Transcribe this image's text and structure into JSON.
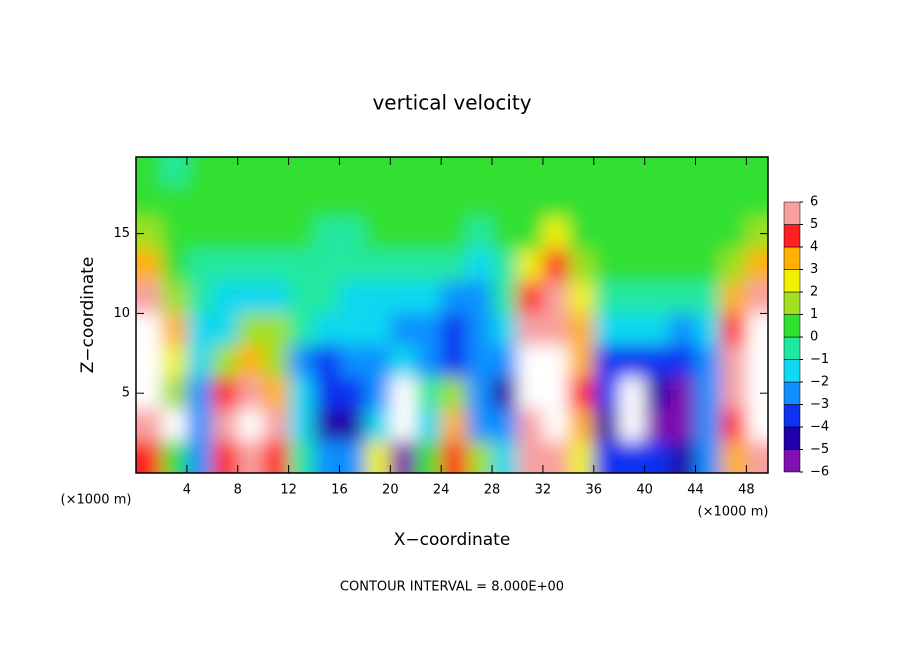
{
  "chart_data": {
    "type": "heatmap",
    "title": "vertical velocity",
    "x_label": "X−coordinate",
    "y_label": "Z−coordinate",
    "x_unit_left": "(×1000 m)",
    "x_unit_right": "(×1000 m)",
    "footer": "CONTOUR INTERVAL = 8.000E+00",
    "xlim": [
      0,
      49.7
    ],
    "ylim": [
      0,
      19.8
    ],
    "xticks": [
      4,
      8,
      12,
      16,
      20,
      24,
      28,
      32,
      36,
      40,
      44,
      48
    ],
    "yticks": [
      5,
      10,
      15
    ],
    "x": [
      1,
      3,
      5,
      7,
      9,
      11,
      13,
      15,
      17,
      19,
      21,
      23,
      25,
      27,
      29,
      31,
      33,
      35,
      37,
      39,
      41,
      43,
      45,
      47,
      49
    ],
    "y": [
      19,
      17,
      15,
      13,
      11,
      9,
      7,
      5,
      3,
      1
    ],
    "values": [
      [
        0,
        -0.5,
        0,
        0.5,
        0.5,
        0.5,
        0.5,
        0.5,
        0.3,
        0.5,
        0.5,
        0.5,
        0.3,
        0.3,
        0.3,
        0.5,
        0.5,
        0.5,
        0.5,
        0.3,
        0.3,
        0.5,
        0.5,
        0.5,
        0.5
      ],
      [
        0.5,
        0,
        0,
        0.5,
        0.5,
        0.5,
        0.3,
        0.3,
        0,
        0,
        0.3,
        0.3,
        0,
        0,
        0.3,
        0.5,
        0.5,
        0.5,
        0.3,
        0.3,
        0.3,
        0.5,
        0.3,
        0.3,
        0.5
      ],
      [
        1,
        0.5,
        0,
        0.3,
        0.3,
        0.3,
        0,
        -0.3,
        -0.5,
        0,
        0,
        0,
        0,
        -0.3,
        0,
        0.3,
        2,
        0.5,
        0.3,
        0.5,
        0.5,
        0.3,
        0,
        0.5,
        1
      ],
      [
        3,
        0.5,
        -0.5,
        -0.5,
        -0.5,
        -0.5,
        -0.5,
        -0.5,
        -0.5,
        -0.5,
        -1,
        -1,
        -1,
        -1.2,
        -0.5,
        2,
        4,
        1.5,
        0,
        0,
        0,
        0,
        0,
        1.5,
        3
      ],
      [
        5,
        1,
        -1,
        -1.5,
        -1.5,
        -1.5,
        -1,
        -1,
        -1.5,
        -1.5,
        -1.5,
        -2,
        -2.5,
        -2.5,
        -1,
        4,
        5,
        2,
        -1,
        -1,
        -1,
        -0.5,
        -0.5,
        3,
        5
      ],
      [
        8,
        3,
        -1.5,
        -2,
        1,
        1,
        -1,
        -2,
        -2,
        -2,
        -2.5,
        -2.5,
        -3.5,
        -3,
        -2,
        5,
        6,
        3,
        -2,
        -2,
        -2,
        -2.5,
        -2,
        4,
        8
      ],
      [
        8,
        2,
        -2,
        1.5,
        3,
        1.5,
        -3,
        -3.5,
        -3,
        -3,
        -2,
        -3,
        -4,
        -3,
        -3,
        7,
        8,
        3,
        -4,
        -4,
        -4,
        -4,
        -3,
        5,
        8
      ],
      [
        7,
        1,
        -3,
        4,
        6,
        3,
        -2,
        -4,
        -3.5,
        -2.5,
        -7,
        -1,
        1,
        -3,
        -5,
        8,
        8,
        4,
        -4,
        -8,
        -5,
        -6,
        -3,
        5,
        8
      ],
      [
        5,
        -7,
        -3,
        5,
        9,
        5,
        -2,
        -5,
        -5,
        -2,
        -8,
        -2,
        3,
        -3,
        -3,
        6,
        9,
        3,
        -5,
        -7,
        -6,
        -6,
        -3,
        4,
        9
      ],
      [
        4,
        0,
        -3,
        4,
        5,
        4,
        -1,
        -3,
        -3,
        2,
        -6,
        0,
        4,
        1,
        -2,
        5,
        5,
        2,
        -4,
        -4,
        -4,
        -5,
        -3,
        3,
        5
      ]
    ],
    "clim": [
      -6,
      6
    ],
    "colors": [
      "#8010b0",
      "#2000a8",
      "#1030f0",
      "#1090ff",
      "#10d8f0",
      "#20e8a0",
      "#30e030",
      "#a0e020",
      "#f0f000",
      "#ffb000",
      "#ff2020",
      "#f8a0a0"
    ],
    "out_of_range_color": "#ffffff",
    "cticks": [
      {
        "value": -6,
        "label": "−6"
      },
      {
        "value": -5,
        "label": "−5"
      },
      {
        "value": -4,
        "label": "−4"
      },
      {
        "value": -3,
        "label": "−3"
      },
      {
        "value": -2,
        "label": "−2"
      },
      {
        "value": -1,
        "label": "−1"
      },
      0,
      1,
      2,
      3,
      4,
      5,
      6
    ]
  }
}
